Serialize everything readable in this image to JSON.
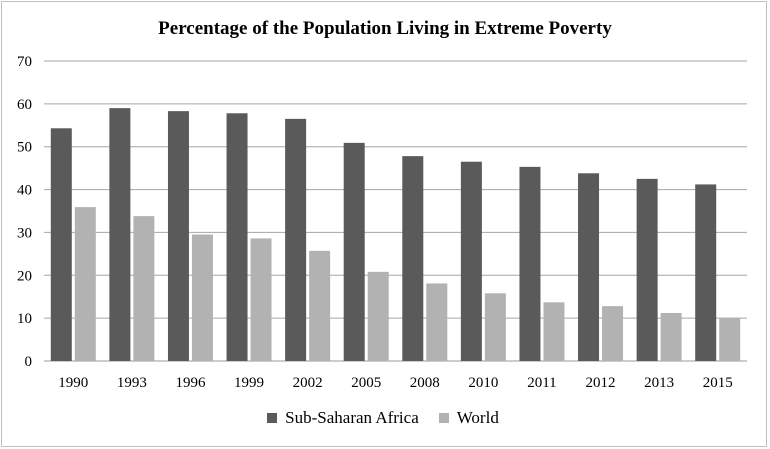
{
  "chart_data": {
    "type": "bar",
    "title": "Percentage of the Population Living in Extreme Poverty",
    "xlabel": "",
    "ylabel": "",
    "ylim": [
      0,
      70
    ],
    "yticks": [
      0,
      10,
      20,
      30,
      40,
      50,
      60,
      70
    ],
    "grid": true,
    "legend": "bottom",
    "categories": [
      "1990",
      "1993",
      "1996",
      "1999",
      "2002",
      "2005",
      "2008",
      "2010",
      "2011",
      "2012",
      "2013",
      "2015"
    ],
    "series": [
      {
        "name": "Sub-Saharan Africa",
        "color": "#5a5a5a",
        "values": [
          54.3,
          59.0,
          58.3,
          57.8,
          56.5,
          50.9,
          47.8,
          46.5,
          45.3,
          43.8,
          42.5,
          41.2
        ]
      },
      {
        "name": "World",
        "color": "#b2b2b2",
        "values": [
          35.9,
          33.8,
          29.5,
          28.6,
          25.7,
          20.8,
          18.1,
          15.8,
          13.7,
          12.8,
          11.2,
          10.1
        ]
      }
    ]
  }
}
